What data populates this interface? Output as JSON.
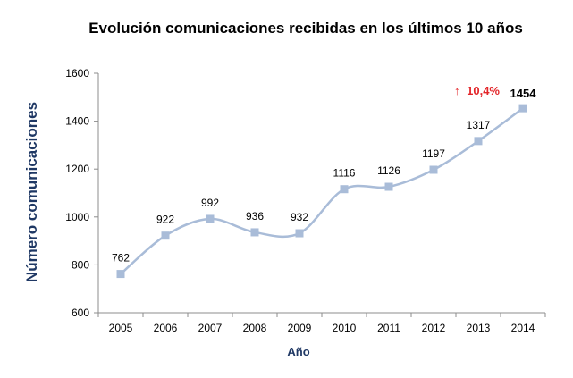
{
  "chart_data": {
    "type": "line",
    "title": "Evolución comunicaciones recibidas en los últimos 10 años",
    "xlabel": "Año",
    "ylabel": "Número comunicaciones",
    "categories": [
      "2005",
      "2006",
      "2007",
      "2008",
      "2009",
      "2010",
      "2011",
      "2012",
      "2013",
      "2014"
    ],
    "series": [
      {
        "values": [
          762,
          922,
          992,
          936,
          932,
          1116,
          1126,
          1197,
          1317,
          1454
        ]
      }
    ],
    "data_labels": [
      "762",
      "922",
      "992",
      "936",
      "932",
      "1116",
      "1126",
      "1197",
      "1317",
      "1454"
    ],
    "ylim": [
      600,
      1600
    ],
    "yticks": [
      "600",
      "800",
      "1000",
      "1200",
      "1400",
      "1600"
    ],
    "annotation": {
      "arrow": "↑",
      "text": "10,4%"
    },
    "grid": false,
    "line_color": "#a9bcd8",
    "marker_color": "#a9bcd8",
    "axis_title_color": "#1f3864",
    "annotation_color": "#e3262a"
  }
}
